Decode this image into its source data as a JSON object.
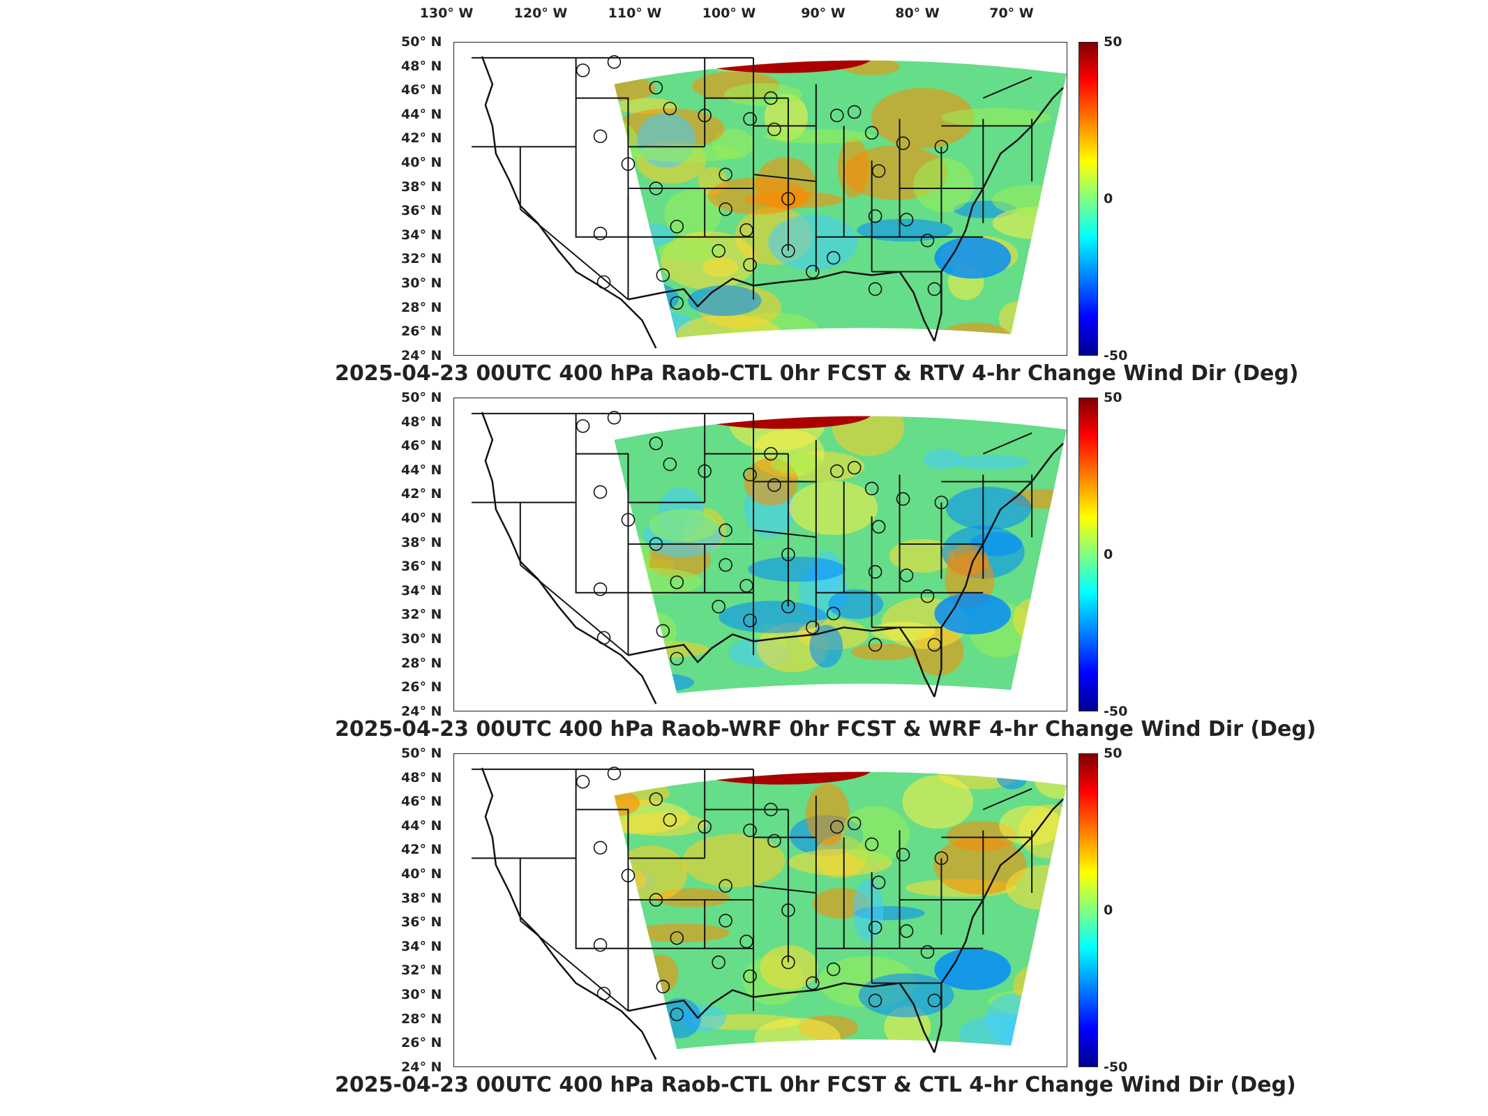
{
  "lon_labels": [
    "130° W",
    "120° W",
    "110° W",
    "100° W",
    "90° W",
    "80° W",
    "70° W"
  ],
  "lat_labels": [
    "50° N",
    "48° N",
    "46° N",
    "44° N",
    "42° N",
    "40° N",
    "38° N",
    "36° N",
    "34° N",
    "32° N",
    "30° N",
    "28° N",
    "26° N",
    "24° N"
  ],
  "colorbar": {
    "max_label": "50",
    "mid_label": "0",
    "min_label": "-50"
  },
  "panels": [
    {
      "title": "2025-04-23 00UTC 400 hPa Raob-CTL 0hr FCST & RTV 4-hr Change Wind Dir (Deg)"
    },
    {
      "title": "2025-04-23 00UTC 400 hPa Raob-WRF 0hr FCST & WRF 4-hr Change Wind Dir (Deg)"
    },
    {
      "title": "2025-04-23 00UTC 400 hPa Raob-CTL 0hr FCST & CTL 4-hr Change Wind Dir (Deg)"
    }
  ],
  "colors": {
    "frame": "#222222",
    "field_mid": "#66dd88",
    "warm": "#ff8800",
    "hot": "#aa0000",
    "cool": "#0088ff"
  }
}
